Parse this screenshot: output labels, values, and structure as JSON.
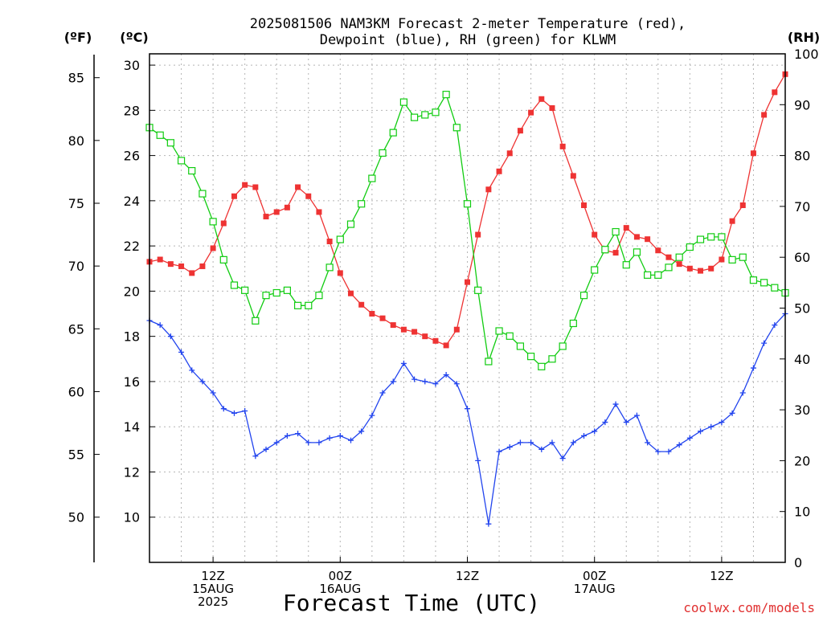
{
  "chart_data": {
    "type": "line",
    "title_line1": "2025081506 NAM3KM Forecast 2-meter Temperature (red),",
    "title_line2": "Dewpoint (blue), RH (green) for KLWM",
    "xlabel": "Forecast Time (UTC)",
    "credit": "coolwx.com/models",
    "unit_f": "(ºF)",
    "unit_c": "(ºC)",
    "unit_rh": "(RH)",
    "x_start": "2025-08-15 06Z",
    "x_step_hours": 1,
    "xlim_hours": [
      0,
      60
    ],
    "ylim_c": [
      8,
      30.5
    ],
    "ylim_rh": [
      0,
      100
    ],
    "yticks_c": [
      10,
      12,
      14,
      16,
      18,
      20,
      22,
      24,
      26,
      28,
      30
    ],
    "yticks_f": [
      50,
      55,
      60,
      65,
      70,
      75,
      80,
      85
    ],
    "yticks_rh": [
      0,
      10,
      20,
      30,
      40,
      50,
      60,
      70,
      80,
      90,
      100
    ],
    "x_ticks": [
      {
        "hour": 6,
        "lines": [
          "12Z",
          "15AUG",
          "2025"
        ]
      },
      {
        "hour": 18,
        "lines": [
          "00Z",
          "16AUG"
        ]
      },
      {
        "hour": 30,
        "lines": [
          "12Z"
        ]
      },
      {
        "hour": 42,
        "lines": [
          "00Z",
          "17AUG"
        ]
      },
      {
        "hour": 54,
        "lines": [
          "12Z"
        ]
      }
    ],
    "colors": {
      "temperature": "#ee3333",
      "dewpoint": "#2244ee",
      "rh": "#11cc11"
    },
    "series": [
      {
        "name": "Temperature",
        "axis": "celsius",
        "values": [
          21.3,
          21.4,
          21.2,
          21.1,
          20.8,
          21.1,
          21.9,
          23.0,
          24.2,
          24.7,
          24.6,
          23.3,
          23.5,
          23.7,
          24.6,
          24.2,
          23.5,
          22.2,
          20.8,
          19.9,
          19.4,
          19.0,
          18.8,
          18.5,
          18.3,
          18.2,
          18.0,
          17.8,
          17.6,
          18.3,
          20.4,
          22.5,
          24.5,
          25.3,
          26.1,
          27.1,
          27.9,
          28.5,
          28.1,
          26.4,
          25.1,
          23.8,
          22.5,
          21.8,
          21.7,
          22.8,
          22.4,
          22.3,
          21.8,
          21.5,
          21.2,
          21.0,
          20.9,
          21.0,
          21.4,
          23.1,
          23.8,
          26.1,
          27.8,
          28.8,
          29.6
        ]
      },
      {
        "name": "Dewpoint",
        "axis": "celsius",
        "values": [
          18.7,
          18.5,
          18.0,
          17.3,
          16.5,
          16.0,
          15.5,
          14.8,
          14.6,
          14.7,
          12.7,
          13.0,
          13.3,
          13.6,
          13.7,
          13.3,
          13.3,
          13.5,
          13.6,
          13.4,
          13.8,
          14.5,
          15.5,
          16.0,
          16.8,
          16.1,
          16.0,
          15.9,
          16.3,
          15.9,
          14.8,
          12.5,
          9.7,
          12.9,
          13.1,
          13.3,
          13.3,
          13.0,
          13.3,
          12.6,
          13.3,
          13.6,
          13.8,
          14.2,
          15.0,
          14.2,
          14.5,
          13.3,
          12.9,
          12.9,
          13.2,
          13.5,
          13.8,
          14.0,
          14.2,
          14.6,
          15.5,
          16.6,
          17.7,
          18.5,
          19.0
        ]
      },
      {
        "name": "RH",
        "axis": "rh",
        "values": [
          85.5,
          84,
          82.5,
          79,
          77,
          72.5,
          67,
          59.5,
          54.5,
          53.5,
          47.5,
          52.5,
          53,
          53.5,
          50.5,
          50.5,
          52.5,
          58,
          63.5,
          66.5,
          70.5,
          75.5,
          80.5,
          84.5,
          90.5,
          87.5,
          88,
          88.5,
          92,
          85.5,
          70.5,
          53.5,
          39.5,
          45.5,
          44.5,
          42.5,
          40.5,
          38.5,
          40,
          42.5,
          47,
          52.5,
          57.5,
          61.5,
          65,
          58.5,
          61,
          56.5,
          56.5,
          58,
          60,
          62,
          63.5,
          64,
          64,
          59.5,
          60,
          55.5,
          55,
          54,
          53
        ]
      }
    ]
  }
}
